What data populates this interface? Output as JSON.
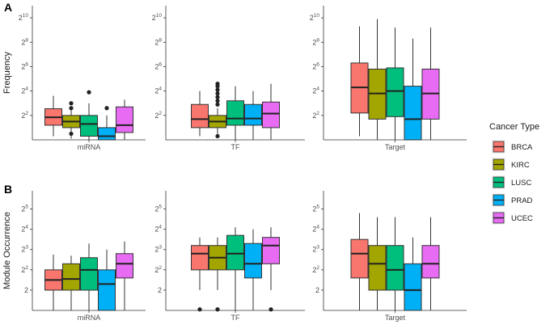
{
  "chart_data": [
    {
      "type": "box",
      "panel": "A",
      "ylabel": "Frequency",
      "yscale": "log2",
      "ylim": [
        0,
        11
      ],
      "y_ticks": [
        {
          "exp": 2,
          "base": "2",
          "sup": "2"
        },
        {
          "exp": 4,
          "base": "2",
          "sup": "4"
        },
        {
          "exp": 6,
          "base": "2",
          "sup": "6"
        },
        {
          "exp": 8,
          "base": "2",
          "sup": "8"
        },
        {
          "exp": 10,
          "base": "2",
          "sup": "10"
        }
      ],
      "facets": [
        {
          "category": "miRNA",
          "boxes": [
            {
              "group": "BRCA",
              "q1": 1.2,
              "median": 1.85,
              "q3": 2.55,
              "whisker_low": 0.3,
              "whisker_high": 3.6,
              "outliers": []
            },
            {
              "group": "KIRC",
              "q1": 1.0,
              "median": 1.5,
              "q3": 2.0,
              "whisker_low": 0.1,
              "whisker_high": 2.5,
              "outliers": [
                2.6,
                3.0,
                0.5
              ]
            },
            {
              "group": "LUSC",
              "q1": 0.3,
              "median": 1.3,
              "q3": 2.0,
              "whisker_low": 0.0,
              "whisker_high": 3.0,
              "outliers": [
                3.9
              ]
            },
            {
              "group": "PRAD",
              "q1": 0.0,
              "median": 0.3,
              "q3": 1.0,
              "whisker_low": 0.0,
              "whisker_high": 2.0,
              "outliers": [
                2.6
              ]
            },
            {
              "group": "UCEC",
              "q1": 0.6,
              "median": 1.2,
              "q3": 2.7,
              "whisker_low": 0.0,
              "whisker_high": 3.3,
              "outliers": []
            }
          ]
        },
        {
          "category": "TF",
          "boxes": [
            {
              "group": "BRCA",
              "q1": 1.0,
              "median": 1.7,
              "q3": 2.9,
              "whisker_low": 0.3,
              "whisker_high": 4.0,
              "outliers": []
            },
            {
              "group": "KIRC",
              "q1": 1.0,
              "median": 1.5,
              "q3": 2.0,
              "whisker_low": 0.3,
              "whisker_high": 2.6,
              "outliers": [
                2.9,
                3.2,
                3.5,
                3.8,
                4.1,
                4.4,
                4.6,
                0.3
              ]
            },
            {
              "group": "LUSC",
              "q1": 1.2,
              "median": 1.75,
              "q3": 3.2,
              "whisker_low": 0.0,
              "whisker_high": 4.4,
              "outliers": []
            },
            {
              "group": "PRAD",
              "q1": 1.2,
              "median": 1.75,
              "q3": 2.9,
              "whisker_low": 0.0,
              "whisker_high": 4.0,
              "outliers": []
            },
            {
              "group": "UCEC",
              "q1": 1.0,
              "median": 2.15,
              "q3": 3.1,
              "whisker_low": 0.0,
              "whisker_high": 4.6,
              "outliers": []
            }
          ]
        },
        {
          "category": "Target",
          "boxes": [
            {
              "group": "BRCA",
              "q1": 2.2,
              "median": 4.3,
              "q3": 6.3,
              "whisker_low": 0.3,
              "whisker_high": 9.3,
              "outliers": []
            },
            {
              "group": "KIRC",
              "q1": 1.7,
              "median": 3.8,
              "q3": 5.8,
              "whisker_low": 0.0,
              "whisker_high": 9.9,
              "outliers": []
            },
            {
              "group": "LUSC",
              "q1": 1.9,
              "median": 4.0,
              "q3": 5.9,
              "whisker_low": 0.0,
              "whisker_high": 9.2,
              "outliers": []
            },
            {
              "group": "PRAD",
              "q1": 0.0,
              "median": 1.7,
              "q3": 4.4,
              "whisker_low": 0.0,
              "whisker_high": 8.3,
              "outliers": []
            },
            {
              "group": "UCEC",
              "q1": 1.7,
              "median": 3.8,
              "q3": 5.8,
              "whisker_low": 0.0,
              "whisker_high": 9.2,
              "outliers": []
            }
          ]
        }
      ]
    },
    {
      "type": "box",
      "panel": "B",
      "ylabel": "Module Occurrence",
      "yscale": "log2",
      "ylim": [
        0,
        5.9
      ],
      "y_ticks": [
        {
          "exp": 1,
          "base": "2",
          "sup": ""
        },
        {
          "exp": 2,
          "base": "2",
          "sup": "2"
        },
        {
          "exp": 3,
          "base": "2",
          "sup": "3"
        },
        {
          "exp": 4,
          "base": "2",
          "sup": "4"
        },
        {
          "exp": 5,
          "base": "2",
          "sup": "5"
        }
      ],
      "facets": [
        {
          "category": "miRNA",
          "boxes": [
            {
              "group": "BRCA",
              "q1": 1.0,
              "median": 1.5,
              "q3": 2.0,
              "whisker_low": 0.0,
              "whisker_high": 2.75,
              "outliers": []
            },
            {
              "group": "KIRC",
              "q1": 1.0,
              "median": 1.55,
              "q3": 2.3,
              "whisker_low": 0.0,
              "whisker_high": 2.7,
              "outliers": []
            },
            {
              "group": "LUSC",
              "q1": 1.0,
              "median": 2.0,
              "q3": 2.6,
              "whisker_low": 0.0,
              "whisker_high": 3.3,
              "outliers": []
            },
            {
              "group": "PRAD",
              "q1": 0.0,
              "median": 1.3,
              "q3": 2.0,
              "whisker_low": 0.0,
              "whisker_high": 3.0,
              "outliers": []
            },
            {
              "group": "UCEC",
              "q1": 1.6,
              "median": 2.3,
              "q3": 2.8,
              "whisker_low": 0.0,
              "whisker_high": 3.4,
              "outliers": []
            }
          ]
        },
        {
          "category": "TF",
          "boxes": [
            {
              "group": "BRCA",
              "q1": 2.0,
              "median": 2.8,
              "q3": 3.2,
              "whisker_low": 1.0,
              "whisker_high": 3.6,
              "outliers": [
                0.05
              ]
            },
            {
              "group": "KIRC",
              "q1": 2.0,
              "median": 2.6,
              "q3": 3.2,
              "whisker_low": 1.0,
              "whisker_high": 3.6,
              "outliers": [
                0.05
              ]
            },
            {
              "group": "LUSC",
              "q1": 2.0,
              "median": 2.8,
              "q3": 3.7,
              "whisker_low": 0.0,
              "whisker_high": 4.1,
              "outliers": []
            },
            {
              "group": "PRAD",
              "q1": 1.6,
              "median": 2.3,
              "q3": 3.3,
              "whisker_low": 0.0,
              "whisker_high": 4.0,
              "outliers": []
            },
            {
              "group": "UCEC",
              "q1": 2.3,
              "median": 3.2,
              "q3": 3.6,
              "whisker_low": 1.0,
              "whisker_high": 4.1,
              "outliers": [
                0.05
              ]
            }
          ]
        },
        {
          "category": "Target",
          "boxes": [
            {
              "group": "BRCA",
              "q1": 1.6,
              "median": 2.8,
              "q3": 3.5,
              "whisker_low": 0.0,
              "whisker_high": 4.8,
              "outliers": []
            },
            {
              "group": "KIRC",
              "q1": 1.0,
              "median": 2.3,
              "q3": 3.2,
              "whisker_low": 0.0,
              "whisker_high": 4.6,
              "outliers": []
            },
            {
              "group": "LUSC",
              "q1": 1.0,
              "median": 2.0,
              "q3": 3.2,
              "whisker_low": 0.0,
              "whisker_high": 4.6,
              "outliers": []
            },
            {
              "group": "PRAD",
              "q1": 0.0,
              "median": 1.0,
              "q3": 2.3,
              "whisker_low": 0.0,
              "whisker_high": 3.6,
              "outliers": []
            },
            {
              "group": "UCEC",
              "q1": 1.6,
              "median": 2.3,
              "q3": 3.2,
              "whisker_low": 0.0,
              "whisker_high": 4.6,
              "outliers": []
            }
          ]
        }
      ]
    }
  ],
  "legend": {
    "title": "Cancer Type",
    "items": [
      {
        "label": "BRCA",
        "color": "#F8766D"
      },
      {
        "label": "KIRC",
        "color": "#A3A500"
      },
      {
        "label": "LUSC",
        "color": "#00BF7D"
      },
      {
        "label": "PRAD",
        "color": "#00B0F6"
      },
      {
        "label": "UCEC",
        "color": "#E76BF3"
      }
    ]
  }
}
